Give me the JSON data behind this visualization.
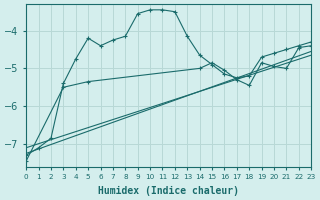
{
  "xlabel": "Humidex (Indice chaleur)",
  "bg_color": "#d4eeed",
  "grid_color": "#b8d8d6",
  "line_color": "#1a6b6b",
  "xlim": [
    0,
    23
  ],
  "ylim": [
    -7.6,
    -3.3
  ],
  "yticks": [
    -7,
    -6,
    -5,
    -4
  ],
  "xticks": [
    0,
    1,
    2,
    3,
    4,
    5,
    6,
    7,
    8,
    9,
    10,
    11,
    12,
    13,
    14,
    15,
    16,
    17,
    18,
    19,
    20,
    21,
    22,
    23
  ],
  "line1_x": [
    0,
    1,
    2,
    3,
    4,
    5,
    6,
    7,
    8,
    9,
    10,
    11,
    12,
    13,
    14,
    15,
    16,
    17,
    18,
    19,
    20,
    21,
    22,
    23
  ],
  "line1_y": [
    -7.3,
    -7.1,
    -6.85,
    -5.4,
    -4.75,
    -4.2,
    -4.4,
    -4.25,
    -4.15,
    -3.55,
    -3.45,
    -3.45,
    -3.5,
    -4.15,
    -4.65,
    -4.9,
    -5.15,
    -5.25,
    -5.2,
    -4.7,
    -4.6,
    -4.5,
    -4.4,
    -4.3
  ],
  "line2_x": [
    0,
    23
  ],
  "line2_y": [
    -7.25,
    -4.55
  ],
  "line3_x": [
    0,
    23
  ],
  "line3_y": [
    -7.1,
    -4.65
  ],
  "line4_x": [
    0,
    3,
    5,
    14,
    15,
    16,
    17,
    18,
    19,
    20,
    21,
    22,
    23
  ],
  "line4_y": [
    -7.45,
    -5.5,
    -5.35,
    -5.0,
    -4.85,
    -5.05,
    -5.3,
    -5.45,
    -4.85,
    -4.95,
    -5.0,
    -4.45,
    -4.4
  ],
  "line1_has_markers": true,
  "line4_has_markers": true
}
